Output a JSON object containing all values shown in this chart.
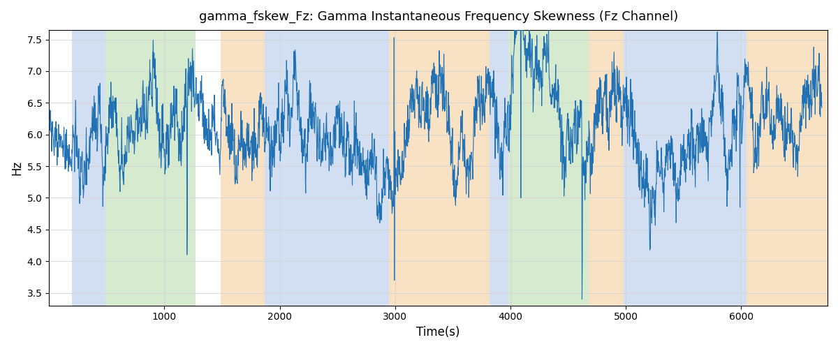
{
  "title": "gamma_fskew_Fz: Gamma Instantaneous Frequency Skewness (Fz Channel)",
  "xlabel": "Time(s)",
  "ylabel": "Hz",
  "ylim": [
    3.3,
    7.65
  ],
  "xlim": [
    0,
    6750
  ],
  "line_color": "#2171b5",
  "line_width": 0.8,
  "figsize": [
    12.0,
    5.0
  ],
  "dpi": 100,
  "bg_color": "#ffffff",
  "bands": [
    {
      "xmin": 200,
      "xmax": 490,
      "color": "#aec6e8",
      "alpha": 0.55
    },
    {
      "xmin": 490,
      "xmax": 1270,
      "color": "#b5d9a8",
      "alpha": 0.55
    },
    {
      "xmin": 1490,
      "xmax": 1870,
      "color": "#f5c992",
      "alpha": 0.55
    },
    {
      "xmin": 1870,
      "xmax": 2950,
      "color": "#aec6e8",
      "alpha": 0.55
    },
    {
      "xmin": 2950,
      "xmax": 3820,
      "color": "#f5c992",
      "alpha": 0.55
    },
    {
      "xmin": 3820,
      "xmax": 3980,
      "color": "#aec6e8",
      "alpha": 0.55
    },
    {
      "xmin": 3980,
      "xmax": 4680,
      "color": "#b5d9a8",
      "alpha": 0.55
    },
    {
      "xmin": 4680,
      "xmax": 4980,
      "color": "#f5c992",
      "alpha": 0.55
    },
    {
      "xmin": 4980,
      "xmax": 6050,
      "color": "#aec6e8",
      "alpha": 0.55
    },
    {
      "xmin": 6050,
      "xmax": 6750,
      "color": "#f5c992",
      "alpha": 0.55
    }
  ],
  "seed": 12345,
  "n_points": 2700,
  "t_start": 5,
  "t_end": 6700
}
